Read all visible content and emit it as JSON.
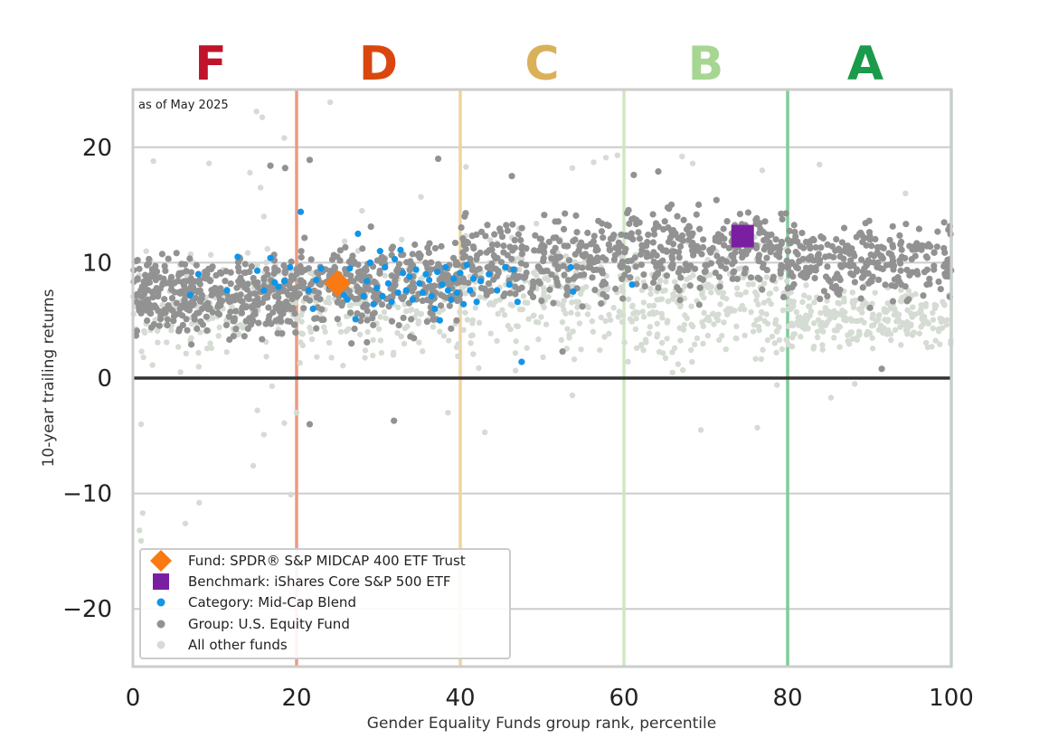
{
  "chart_data": {
    "type": "scatter",
    "as_of": "as of May 2025",
    "xlabel": "Gender Equality Funds group rank, percentile",
    "ylabel": "10-year trailing returns",
    "xlim": [
      0,
      100
    ],
    "ylim": [
      -25,
      25
    ],
    "x_ticks": [
      0,
      20,
      40,
      60,
      80,
      100
    ],
    "y_ticks": [
      -20,
      -10,
      0,
      10,
      20
    ],
    "y_tick_labels": [
      "−20",
      "−10",
      "0",
      "10",
      "20"
    ],
    "grid": "horizontal",
    "zero_line": 0,
    "grades": [
      {
        "label": "F",
        "center": 9.5,
        "color": "#c0142b"
      },
      {
        "label": "D",
        "center": 30,
        "color": "#d9470f"
      },
      {
        "label": "C",
        "center": 50,
        "color": "#d9b159"
      },
      {
        "label": "B",
        "center": 70,
        "color": "#a7d693"
      },
      {
        "label": "A",
        "center": 89.5,
        "color": "#1a9a4b"
      }
    ],
    "boundaries": [
      {
        "x": 20,
        "color": "#ef9a80"
      },
      {
        "x": 40,
        "color": "#f0d49e"
      },
      {
        "x": 60,
        "color": "#cfe8c2"
      },
      {
        "x": 80,
        "color": "#7fcc98"
      },
      {
        "x": 100,
        "color": "#aad9b8"
      }
    ],
    "fund": {
      "name": "Fund: SPDR® S&P MIDCAP 400 ETF Trust",
      "x": 25,
      "y": 8.2,
      "color": "#f97a12"
    },
    "benchmark": {
      "name": "Benchmark: iShares Core S&P 500 ETF",
      "x": 74.5,
      "y": 12.3,
      "color": "#7b1fa2"
    },
    "category": {
      "name": "Category: Mid-Cap Blend",
      "color": "#1095e8",
      "points": [
        [
          7,
          7.2
        ],
        [
          8,
          9
        ],
        [
          11.5,
          7.6
        ],
        [
          12.8,
          10.5
        ],
        [
          15.2,
          9.3
        ],
        [
          16,
          7.6
        ],
        [
          16.8,
          10.4
        ],
        [
          17.3,
          8.3
        ],
        [
          17.8,
          7.9
        ],
        [
          18.5,
          8.4
        ],
        [
          19.2,
          9.6
        ],
        [
          20.5,
          14.4
        ],
        [
          21.5,
          7.6
        ],
        [
          22,
          6
        ],
        [
          22.4,
          8.5
        ],
        [
          23,
          9.5
        ],
        [
          24,
          8
        ],
        [
          25.8,
          7.2
        ],
        [
          26.2,
          6.8
        ],
        [
          26.5,
          9.5
        ],
        [
          27.2,
          5.1
        ],
        [
          27.5,
          12.5
        ],
        [
          28.2,
          7.1
        ],
        [
          28.6,
          8.4
        ],
        [
          29,
          10
        ],
        [
          29.4,
          6.4
        ],
        [
          29.8,
          7.8
        ],
        [
          30.2,
          11
        ],
        [
          30.5,
          7.1
        ],
        [
          30.8,
          9.6
        ],
        [
          31.2,
          8.2
        ],
        [
          31.6,
          6.6
        ],
        [
          32,
          10.3
        ],
        [
          32.4,
          7.4
        ],
        [
          32.7,
          11.1
        ],
        [
          33,
          9.1
        ],
        [
          33.4,
          7.6
        ],
        [
          33.8,
          8.8
        ],
        [
          34.2,
          6.8
        ],
        [
          34.6,
          9.4
        ],
        [
          35,
          8.2
        ],
        [
          35.4,
          7.4
        ],
        [
          35.8,
          9
        ],
        [
          36.2,
          8.5
        ],
        [
          36.5,
          7.1
        ],
        [
          36.9,
          6
        ],
        [
          37.2,
          9.2
        ],
        [
          37.5,
          5
        ],
        [
          37.8,
          8.1
        ],
        [
          38.2,
          9.6
        ],
        [
          38.5,
          7.6
        ],
        [
          38.9,
          6.8
        ],
        [
          39.2,
          8.6
        ],
        [
          39.6,
          7.4
        ],
        [
          40,
          9.1
        ],
        [
          40.4,
          6.4
        ],
        [
          40.8,
          9.8
        ],
        [
          41.2,
          7.6
        ],
        [
          41.6,
          8.6
        ],
        [
          42,
          6.6
        ],
        [
          42.5,
          8.4
        ],
        [
          43.5,
          9
        ],
        [
          44.5,
          7.6
        ],
        [
          45.5,
          9.6
        ],
        [
          46,
          8.1
        ],
        [
          46.5,
          9.4
        ],
        [
          47,
          6.6
        ],
        [
          47.5,
          1.4
        ],
        [
          53.5,
          9.6
        ],
        [
          53.8,
          7.5
        ],
        [
          61,
          8.1
        ]
      ]
    },
    "group": {
      "name": "Group: U.S. Equity Fund",
      "color": "#929292",
      "bands": [
        {
          "x0": 0,
          "x1": 20,
          "y_mean": 7.3,
          "y_spread": 2.2,
          "n": 380
        },
        {
          "x0": 20,
          "x1": 40,
          "y_mean": 8.2,
          "y_spread": 2.6,
          "n": 300
        },
        {
          "x0": 40,
          "x1": 60,
          "y_mean": 10.3,
          "y_spread": 2.7,
          "n": 260
        },
        {
          "x0": 60,
          "x1": 80,
          "y_mean": 11.2,
          "y_spread": 2.6,
          "n": 260
        },
        {
          "x0": 80,
          "x1": 100,
          "y_mean": 10.1,
          "y_spread": 2.2,
          "n": 260
        }
      ],
      "outliers": [
        [
          16.8,
          18.4
        ],
        [
          18.6,
          18.2
        ],
        [
          21.6,
          18.9
        ],
        [
          37.3,
          19
        ],
        [
          31.9,
          -3.7
        ],
        [
          21.6,
          -4
        ],
        [
          91.5,
          0.8
        ],
        [
          52.5,
          2.3
        ],
        [
          26.7,
          3
        ],
        [
          28.6,
          3.1
        ],
        [
          22.4,
          4.3
        ],
        [
          33.9,
          3.6
        ],
        [
          46.3,
          17.5
        ],
        [
          61.2,
          17.6
        ],
        [
          64.2,
          17.9
        ]
      ]
    },
    "others": {
      "name": "All other funds",
      "color": "#d5dcd3",
      "bands": [
        {
          "x0": 0,
          "x1": 20,
          "y_mean": 6,
          "y_spread": 3.2,
          "n": 180
        },
        {
          "x0": 20,
          "x1": 40,
          "y_mean": 6.2,
          "y_spread": 3,
          "n": 170
        },
        {
          "x0": 40,
          "x1": 60,
          "y_mean": 7,
          "y_spread": 3.6,
          "n": 200
        },
        {
          "x0": 60,
          "x1": 80,
          "y_mean": 6.4,
          "y_spread": 3.4,
          "n": 240
        },
        {
          "x0": 80,
          "x1": 100,
          "y_mean": 5.2,
          "y_spread": 1.8,
          "n": 260
        }
      ],
      "outliers": [
        [
          0.8,
          -13.2
        ],
        [
          1,
          -14.1
        ],
        [
          1.2,
          -11.7
        ],
        [
          6.4,
          -12.6
        ],
        [
          8.1,
          -10.8
        ],
        [
          19.3,
          -10.1
        ],
        [
          14.7,
          -7.6
        ],
        [
          16,
          -4.9
        ],
        [
          18.5,
          -3.9
        ],
        [
          15.2,
          -2.8
        ],
        [
          17,
          -0.7
        ],
        [
          1,
          -4
        ],
        [
          20,
          -3
        ],
        [
          38.5,
          -3
        ],
        [
          43,
          -4.7
        ],
        [
          53.7,
          -1.5
        ],
        [
          69.4,
          -4.5
        ],
        [
          76.3,
          -4.3
        ],
        [
          85.3,
          -1.7
        ],
        [
          88.2,
          -0.5
        ],
        [
          78.7,
          -0.6
        ],
        [
          15.1,
          23.1
        ],
        [
          15.8,
          22.6
        ],
        [
          24.1,
          23.9
        ],
        [
          18.5,
          20.8
        ],
        [
          2.5,
          18.8
        ],
        [
          9.3,
          18.6
        ],
        [
          14.3,
          17.8
        ],
        [
          15.6,
          16.5
        ],
        [
          40.7,
          18.3
        ],
        [
          53.7,
          18.2
        ],
        [
          56.3,
          18.7
        ],
        [
          57.8,
          19.1
        ],
        [
          59.2,
          19.3
        ],
        [
          67.1,
          19.2
        ],
        [
          68.4,
          18.6
        ],
        [
          76.9,
          18
        ],
        [
          83.9,
          18.5
        ],
        [
          94.4,
          16
        ],
        [
          16,
          14
        ],
        [
          28,
          14.5
        ],
        [
          35.2,
          15.7
        ]
      ]
    }
  }
}
